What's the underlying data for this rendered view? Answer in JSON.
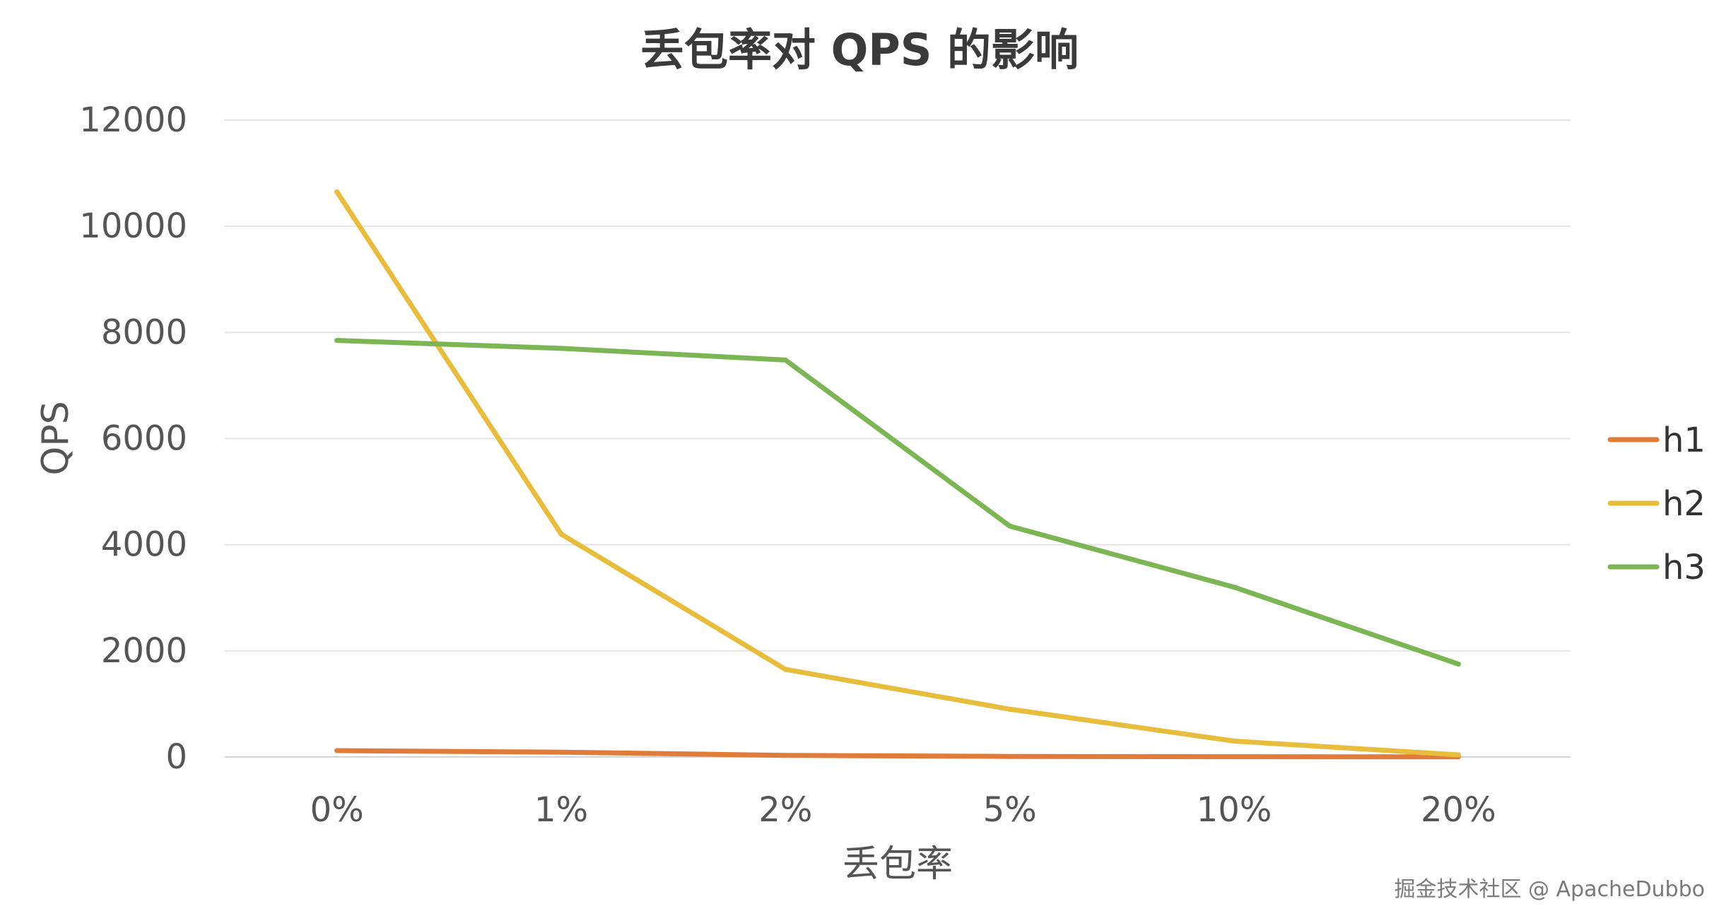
{
  "chart_data": {
    "type": "line",
    "title": "丢包率对 QPS 的影响",
    "xlabel": "丢包率",
    "ylabel": "QPS",
    "categories": [
      "0%",
      "1%",
      "2%",
      "5%",
      "10%",
      "20%"
    ],
    "ylim": [
      0,
      12000
    ],
    "yticks": [
      0,
      2000,
      4000,
      6000,
      8000,
      10000,
      12000
    ],
    "grid": true,
    "legend_position": "right",
    "series": [
      {
        "name": "h1",
        "color": "#E07B39",
        "values": [
          120,
          90,
          30,
          10,
          5,
          2
        ]
      },
      {
        "name": "h2",
        "color": "#E9BD3C",
        "values": [
          10650,
          4200,
          1650,
          900,
          300,
          40
        ]
      },
      {
        "name": "h3",
        "color": "#7CB553",
        "values": [
          7850,
          7700,
          7480,
          4350,
          3200,
          1750
        ]
      }
    ]
  },
  "watermark": "掘金技术社区 @ ApacheDubbo"
}
